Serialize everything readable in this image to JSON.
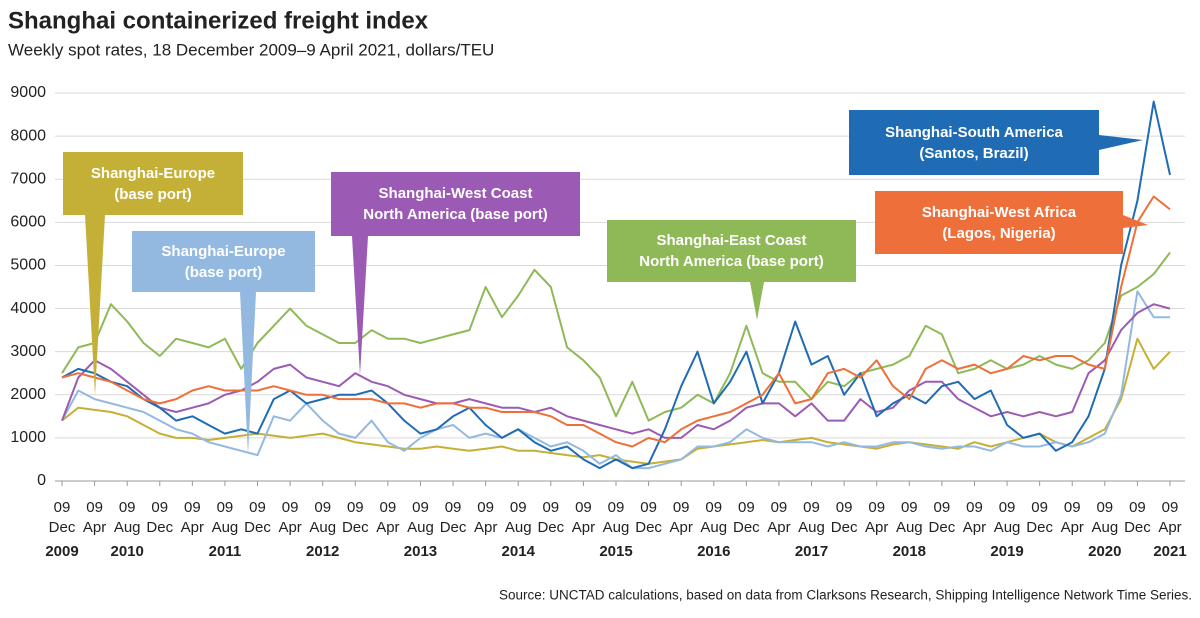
{
  "chart_data": {
    "type": "line",
    "title": "Shanghai containerized freight index",
    "subtitle": "Weekly spot rates, 18 December 2009–9 April 2021, dollars/TEU",
    "source": "Source: UNCTAD calculations, based on data from Clarksons Research, Shipping Intelligence Network Time Series.",
    "x": [
      "2009-12",
      "2010-02",
      "2010-04",
      "2010-06",
      "2010-08",
      "2010-10",
      "2010-12",
      "2011-02",
      "2011-04",
      "2011-06",
      "2011-08",
      "2011-10",
      "2011-12",
      "2012-02",
      "2012-04",
      "2012-06",
      "2012-08",
      "2012-10",
      "2012-12",
      "2013-02",
      "2013-04",
      "2013-06",
      "2013-08",
      "2013-10",
      "2013-12",
      "2014-02",
      "2014-04",
      "2014-06",
      "2014-08",
      "2014-10",
      "2014-12",
      "2015-02",
      "2015-04",
      "2015-06",
      "2015-08",
      "2015-10",
      "2015-12",
      "2016-02",
      "2016-04",
      "2016-06",
      "2016-08",
      "2016-10",
      "2016-12",
      "2017-02",
      "2017-04",
      "2017-06",
      "2017-08",
      "2017-10",
      "2017-12",
      "2018-02",
      "2018-04",
      "2018-06",
      "2018-08",
      "2018-10",
      "2018-12",
      "2019-02",
      "2019-04",
      "2019-06",
      "2019-08",
      "2019-10",
      "2019-12",
      "2020-02",
      "2020-04",
      "2020-06",
      "2020-08",
      "2020-10",
      "2020-12",
      "2021-02",
      "2021-04"
    ],
    "xlim": [
      "2009-12",
      "2021-04"
    ],
    "xticks": [
      {
        "value": "2009-12",
        "day": "09",
        "label": "Dec"
      },
      {
        "value": "2010-04",
        "day": "09",
        "label": "Apr"
      },
      {
        "value": "2010-08",
        "day": "09",
        "label": "Aug"
      },
      {
        "value": "2010-12",
        "day": "09",
        "label": "Dec"
      },
      {
        "value": "2011-04",
        "day": "09",
        "label": "Apr"
      },
      {
        "value": "2011-08",
        "day": "09",
        "label": "Aug"
      },
      {
        "value": "2011-12",
        "day": "09",
        "label": "Dec"
      },
      {
        "value": "2012-04",
        "day": "09",
        "label": "Apr"
      },
      {
        "value": "2012-08",
        "day": "09",
        "label": "Aug"
      },
      {
        "value": "2012-12",
        "day": "09",
        "label": "Dec"
      },
      {
        "value": "2013-04",
        "day": "09",
        "label": "Apr"
      },
      {
        "value": "2013-08",
        "day": "09",
        "label": "Aug"
      },
      {
        "value": "2013-12",
        "day": "09",
        "label": "Dec"
      },
      {
        "value": "2014-04",
        "day": "09",
        "label": "Apr"
      },
      {
        "value": "2014-08",
        "day": "09",
        "label": "Aug"
      },
      {
        "value": "2014-12",
        "day": "09",
        "label": "Dec"
      },
      {
        "value": "2015-04",
        "day": "09",
        "label": "Apr"
      },
      {
        "value": "2015-08",
        "day": "09",
        "label": "Aug"
      },
      {
        "value": "2015-12",
        "day": "09",
        "label": "Dec"
      },
      {
        "value": "2016-04",
        "day": "09",
        "label": "Apr"
      },
      {
        "value": "2016-08",
        "day": "09",
        "label": "Aug"
      },
      {
        "value": "2016-12",
        "day": "09",
        "label": "Dec"
      },
      {
        "value": "2017-04",
        "day": "09",
        "label": "Apr"
      },
      {
        "value": "2017-08",
        "day": "09",
        "label": "Aug"
      },
      {
        "value": "2017-12",
        "day": "09",
        "label": "Dec"
      },
      {
        "value": "2018-04",
        "day": "09",
        "label": "Apr"
      },
      {
        "value": "2018-08",
        "day": "09",
        "label": "Aug"
      },
      {
        "value": "2018-12",
        "day": "09",
        "label": "Dec"
      },
      {
        "value": "2019-04",
        "day": "09",
        "label": "Apr"
      },
      {
        "value": "2019-08",
        "day": "09",
        "label": "Aug"
      },
      {
        "value": "2019-12",
        "day": "09",
        "label": "Dec"
      },
      {
        "value": "2020-04",
        "day": "09",
        "label": "Apr"
      },
      {
        "value": "2020-08",
        "day": "09",
        "label": "Aug"
      },
      {
        "value": "2020-12",
        "day": "09",
        "label": "Dec"
      },
      {
        "value": "2021-04",
        "day": "09",
        "label": "Apr"
      }
    ],
    "year_labels": [
      {
        "value": "2009-12",
        "label": "2009"
      },
      {
        "value": "2010-08",
        "label": "2010"
      },
      {
        "value": "2011-08",
        "label": "2011"
      },
      {
        "value": "2012-08",
        "label": "2012"
      },
      {
        "value": "2013-08",
        "label": "2013"
      },
      {
        "value": "2014-08",
        "label": "2014"
      },
      {
        "value": "2015-08",
        "label": "2015"
      },
      {
        "value": "2016-08",
        "label": "2016"
      },
      {
        "value": "2017-08",
        "label": "2017"
      },
      {
        "value": "2018-08",
        "label": "2018"
      },
      {
        "value": "2019-08",
        "label": "2019"
      },
      {
        "value": "2020-08",
        "label": "2020"
      },
      {
        "value": "2021-04",
        "label": "2021"
      }
    ],
    "ylim": [
      0,
      9000
    ],
    "yticks": [
      0,
      1000,
      2000,
      3000,
      4000,
      5000,
      6000,
      7000,
      8000,
      9000
    ],
    "grid": true,
    "series": [
      {
        "name": "Shanghai-Europe\n(base port)",
        "color": "#c4b036",
        "values": [
          1400,
          1700,
          1650,
          1600,
          1500,
          1300,
          1100,
          1000,
          1000,
          950,
          1000,
          1050,
          1100,
          1050,
          1000,
          1050,
          1100,
          1000,
          900,
          850,
          800,
          750,
          750,
          800,
          750,
          700,
          750,
          800,
          700,
          700,
          650,
          600,
          550,
          600,
          500,
          450,
          400,
          450,
          500,
          750,
          800,
          850,
          900,
          950,
          900,
          950,
          1000,
          900,
          850,
          800,
          750,
          850,
          900,
          850,
          800,
          750,
          900,
          800,
          900,
          1000,
          1100,
          900,
          800,
          1000,
          1200,
          1900,
          3300,
          2600,
          3000
        ]
      },
      {
        "name": "Shanghai-Europe\n(base port)",
        "color": "#93b9e0",
        "values": [
          1400,
          2100,
          1900,
          1800,
          1700,
          1600,
          1400,
          1200,
          1100,
          900,
          800,
          700,
          600,
          1500,
          1400,
          1800,
          1400,
          1100,
          1000,
          1400,
          900,
          700,
          1000,
          1200,
          1300,
          1000,
          1100,
          1000,
          1200,
          1000,
          800,
          900,
          700,
          400,
          600,
          300,
          300,
          400,
          500,
          800,
          800,
          900,
          1200,
          1000,
          900,
          900,
          900,
          800,
          900,
          800,
          800,
          900,
          900,
          800,
          750,
          800,
          800,
          700,
          900,
          800,
          800,
          900,
          800,
          900,
          1100,
          2000,
          4400,
          3800,
          3800
        ]
      },
      {
        "name": "Shanghai-West Coast\nNorth America (base port)",
        "color": "#9b5bb5",
        "values": [
          1400,
          2400,
          2800,
          2600,
          2300,
          2000,
          1700,
          1600,
          1700,
          1800,
          2000,
          2100,
          2300,
          2600,
          2700,
          2400,
          2300,
          2200,
          2500,
          2300,
          2200,
          2000,
          1900,
          1800,
          1800,
          1900,
          1800,
          1700,
          1700,
          1600,
          1700,
          1500,
          1400,
          1300,
          1200,
          1100,
          1200,
          1000,
          1000,
          1300,
          1200,
          1400,
          1700,
          1800,
          1800,
          1500,
          1800,
          1400,
          1400,
          1900,
          1600,
          1700,
          2100,
          2300,
          2300,
          1900,
          1700,
          1500,
          1600,
          1500,
          1600,
          1500,
          1600,
          2500,
          2800,
          3500,
          3900,
          4100,
          4000
        ]
      },
      {
        "name": "Shanghai-East Coast\nNorth America (base port)",
        "color": "#8fb957",
        "values": [
          2500,
          3100,
          3200,
          4100,
          3700,
          3200,
          2900,
          3300,
          3200,
          3100,
          3300,
          2600,
          3200,
          3600,
          4000,
          3600,
          3400,
          3200,
          3200,
          3500,
          3300,
          3300,
          3200,
          3300,
          3400,
          3500,
          4500,
          3800,
          4300,
          4900,
          4500,
          3100,
          2800,
          2400,
          1500,
          2300,
          1400,
          1600,
          1700,
          2000,
          1800,
          2500,
          3600,
          2500,
          2300,
          2300,
          1900,
          2300,
          2200,
          2500,
          2600,
          2700,
          2900,
          3600,
          3400,
          2500,
          2600,
          2800,
          2600,
          2700,
          2900,
          2700,
          2600,
          2800,
          3200,
          4300,
          4500,
          4800,
          5300
        ]
      },
      {
        "name": "Shanghai-South America\n(Santos, Brazil)",
        "color": "#1f6cb5",
        "values": [
          2400,
          2600,
          2500,
          2300,
          2200,
          1900,
          1700,
          1400,
          1500,
          1300,
          1100,
          1200,
          1100,
          1900,
          2100,
          1800,
          1900,
          2000,
          2000,
          2100,
          1800,
          1400,
          1100,
          1200,
          1500,
          1700,
          1300,
          1000,
          1200,
          900,
          700,
          800,
          500,
          300,
          500,
          300,
          400,
          1200,
          2200,
          3000,
          1800,
          2300,
          3000,
          1800,
          2500,
          3700,
          2700,
          2900,
          2000,
          2500,
          1500,
          1800,
          2000,
          1800,
          2200,
          2300,
          1900,
          2100,
          1300,
          1000,
          1100,
          700,
          900,
          1500,
          2600,
          5000,
          6500,
          8800,
          7100
        ]
      },
      {
        "name": "Shanghai-West Africa\n(Lagos, Nigeria)",
        "color": "#ef6f3a",
        "values": [
          2400,
          2500,
          2400,
          2300,
          2100,
          1900,
          1800,
          1900,
          2100,
          2200,
          2100,
          2100,
          2100,
          2200,
          2100,
          2000,
          2000,
          1900,
          1900,
          1900,
          1800,
          1800,
          1700,
          1800,
          1800,
          1700,
          1700,
          1600,
          1600,
          1600,
          1500,
          1300,
          1300,
          1100,
          900,
          800,
          1000,
          900,
          1200,
          1400,
          1500,
          1600,
          1800,
          2000,
          2500,
          1800,
          1900,
          2500,
          2600,
          2400,
          2800,
          2200,
          1900,
          2600,
          2800,
          2600,
          2700,
          2500,
          2600,
          2900,
          2800,
          2900,
          2900,
          2700,
          2600,
          4500,
          6000,
          6600,
          6300
        ]
      }
    ]
  }
}
